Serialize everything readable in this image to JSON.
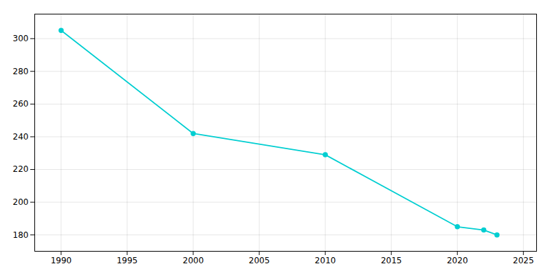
{
  "chart_data": {
    "type": "line",
    "x": [
      1990,
      2000,
      2010,
      2020,
      2022,
      2023
    ],
    "values": [
      305,
      242,
      229,
      185,
      183,
      180
    ],
    "color": "#00CED1",
    "marker": "o",
    "xlim": [
      1988,
      2026
    ],
    "ylim": [
      170,
      315
    ],
    "xticks": [
      1990,
      1995,
      2000,
      2005,
      2010,
      2015,
      2020,
      2025
    ],
    "yticks": [
      180,
      200,
      220,
      240,
      260,
      280,
      300
    ],
    "grid": true
  }
}
